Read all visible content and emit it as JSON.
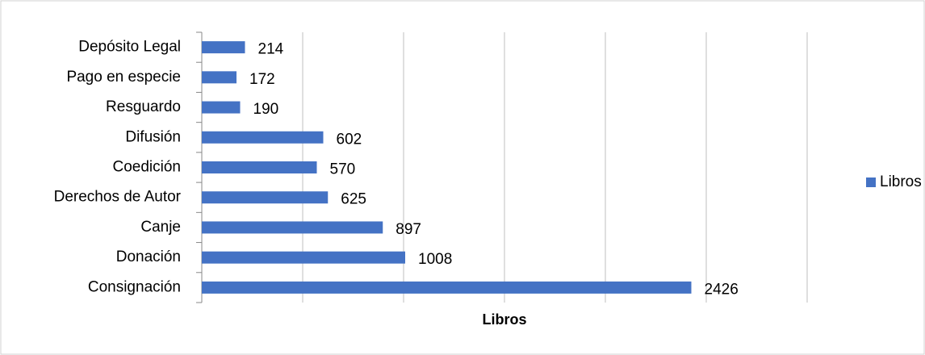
{
  "chart_data": {
    "type": "bar",
    "orientation": "horizontal",
    "categories": [
      "Depósito Legal",
      "Pago en especie",
      "Resguardo",
      "Difusión",
      "Coedición",
      "Derechos de Autor",
      "Canje",
      "Donación",
      "Consignación"
    ],
    "series": [
      {
        "name": "Libros",
        "color": "#4472c4",
        "values": [
          214,
          172,
          190,
          602,
          570,
          625,
          897,
          1008,
          2426
        ]
      }
    ],
    "x_label": "Libros",
    "xlim": [
      0,
      3000
    ],
    "xticks": [
      0,
      500,
      1000,
      1500,
      2000,
      2500,
      3000
    ],
    "grid": true,
    "legend": "right"
  }
}
